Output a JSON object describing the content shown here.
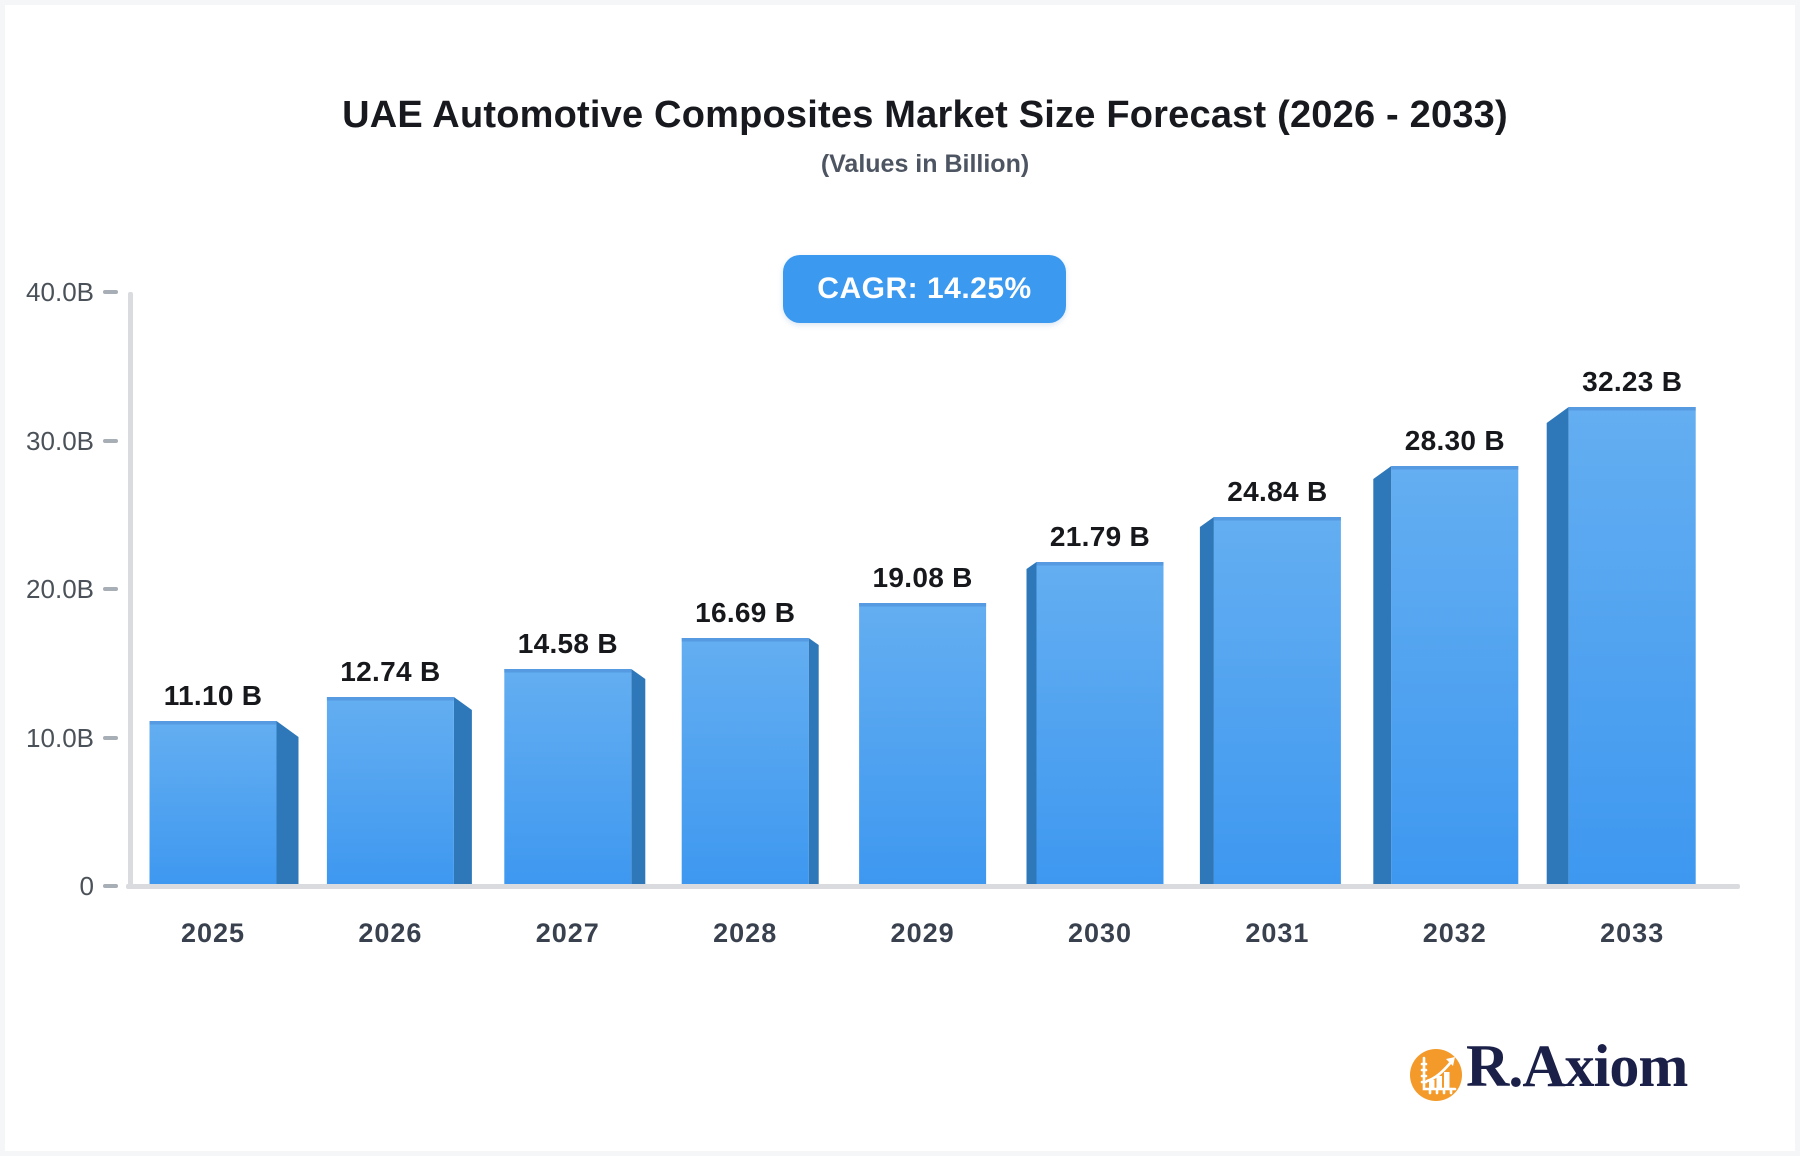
{
  "title": "UAE Automotive Composites Market Size Forecast (2026 - 2033)",
  "subtitle": "(Values in Billion)",
  "badge": {
    "label": "CAGR: 14.25%"
  },
  "chart_data": {
    "type": "bar",
    "style": "3d-perspective-bars",
    "title": "UAE Automotive Composites Market Size Forecast (2026 - 2033)",
    "subtitle": "(Values in Billion)",
    "cagr": "14.25%",
    "categories": [
      "2025",
      "2026",
      "2027",
      "2028",
      "2029",
      "2030",
      "2031",
      "2032",
      "2033"
    ],
    "values": [
      11.1,
      12.74,
      14.58,
      16.69,
      19.08,
      21.79,
      24.84,
      28.3,
      32.23
    ],
    "value_labels": [
      "11.10 B",
      "12.74 B",
      "14.58 B",
      "16.69 B",
      "19.08 B",
      "21.79 B",
      "24.84 B",
      "28.30 B",
      "32.23 B"
    ],
    "unit": "Billion",
    "xlabel": "",
    "ylabel": "",
    "ylim": [
      0,
      40
    ],
    "yticks": {
      "labels": [
        "0",
        "10.0B",
        "20.0B",
        "30.0B",
        "40.0B"
      ],
      "values": [
        0,
        10,
        20,
        30,
        40
      ]
    },
    "grid": false,
    "legend": "none"
  },
  "colors": {
    "bar_face_top": "#64AEF1",
    "bar_face_bottom": "#3E98F0",
    "bar_face_edge": "#4E90D8",
    "bar_side": "#2E78BA",
    "badge_bg": "#3B99EF",
    "badge_text": "#FFFFFF",
    "axis_line": "#D9DBDE",
    "tick_mark": "#A8AEB6",
    "title_text": "#17191E",
    "subtitle_text": "#4D5562",
    "value_label_text": "#16181C",
    "axis_label_text": "#4A5158",
    "year_label_text": "#39414F",
    "logo_orange": "#F39A2A",
    "logo_navy": "#1B2048",
    "frame": "#F4F6F8"
  },
  "logo": {
    "text": "R.Axiom",
    "icon": "bar-chart-growth-icon"
  }
}
